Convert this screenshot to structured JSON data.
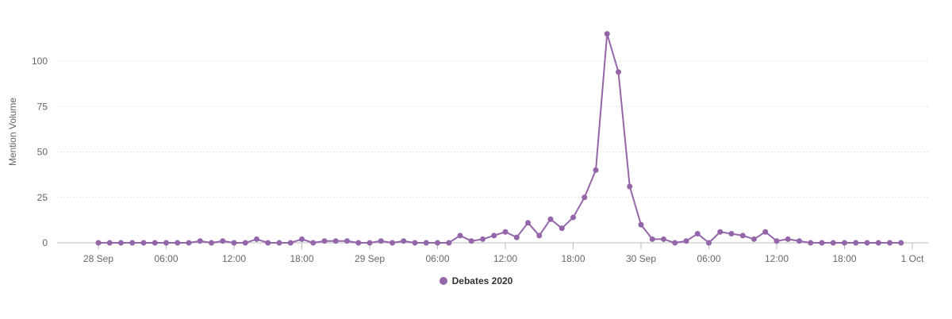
{
  "chart_data": {
    "type": "line",
    "ylabel": "Mention Volume",
    "ylim": [
      0,
      120
    ],
    "yticks": [
      0,
      25,
      50,
      75,
      100
    ],
    "xticks": [
      "28 Sep",
      "06:00",
      "12:00",
      "18:00",
      "29 Sep",
      "06:00",
      "12:00",
      "18:00",
      "30 Sep",
      "06:00",
      "12:00",
      "18:00",
      "1 Oct"
    ],
    "x_interval_hours": 1,
    "grid": true,
    "legend_position": "bottom",
    "series": [
      {
        "name": "Debates 2020",
        "color": "#9466a9",
        "values": [
          0,
          0,
          0,
          0,
          0,
          0,
          0,
          0,
          0,
          1,
          0,
          1,
          0,
          0,
          2,
          0,
          0,
          0,
          2,
          0,
          1,
          1,
          1,
          0,
          0,
          1,
          0,
          1,
          0,
          0,
          0,
          0,
          4,
          1,
          2,
          4,
          6,
          3,
          11,
          4,
          13,
          8,
          14,
          25,
          40,
          115,
          94,
          31,
          10,
          2,
          2,
          0,
          1,
          5,
          0,
          6,
          5,
          4,
          2,
          6,
          1,
          2,
          1,
          0,
          0,
          0,
          0,
          0,
          0,
          0,
          0,
          0
        ]
      }
    ]
  }
}
